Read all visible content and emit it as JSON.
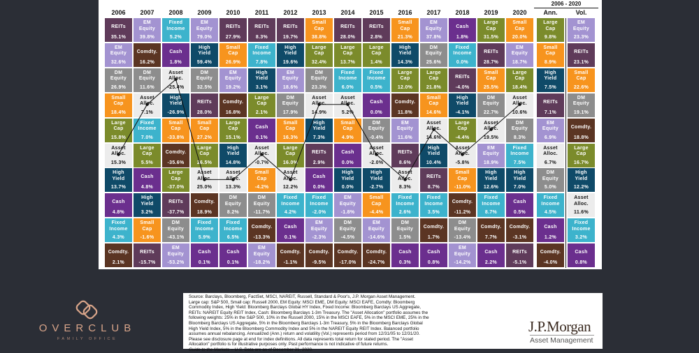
{
  "colors": {
    "reits": "#5f3b5a",
    "em": "#a393d1",
    "fi": "#3db3cc",
    "cash": "#6b2f8e",
    "hy": "#0f4a68",
    "dm": "#8d8d8d",
    "comdty": "#5b3523",
    "small": "#f7941e",
    "large": "#7b8b2b",
    "aa": "#ececec"
  },
  "assets": {
    "reits": "REITs",
    "em": "EM\nEquity",
    "fi": "Fixed\nIncome",
    "cash": "Cash",
    "hy": "High\nYield",
    "dm": "DM\nEquity",
    "comdty": "Comdty.",
    "small": "Small\nCap",
    "large": "Large\nCap",
    "aa": "Asset\nAlloc."
  },
  "chart_data": {
    "type": "table",
    "range_header": "2006 - 2020",
    "columns": [
      {
        "year": "2006",
        "cells": [
          [
            "reits",
            "35.1%"
          ],
          [
            "em",
            "32.6%"
          ],
          [
            "dm",
            "26.9%"
          ],
          [
            "small",
            "18.4%"
          ],
          [
            "large",
            "15.8%"
          ],
          [
            "aa",
            "15.3%"
          ],
          [
            "hy",
            "13.7%"
          ],
          [
            "cash",
            "4.8%"
          ],
          [
            "fi",
            "4.3%"
          ],
          [
            "comdty",
            "2.1%"
          ]
        ]
      },
      {
        "year": "2007",
        "cells": [
          [
            "em",
            "39.8%"
          ],
          [
            "comdty",
            "16.2%"
          ],
          [
            "dm",
            "11.6%"
          ],
          [
            "aa",
            "7.1%"
          ],
          [
            "fi",
            "7.0%"
          ],
          [
            "large",
            "5.5%"
          ],
          [
            "cash",
            "4.8%"
          ],
          [
            "hy",
            "3.2%"
          ],
          [
            "small",
            "-1.6%"
          ],
          [
            "reits",
            "-15.7%"
          ]
        ]
      },
      {
        "year": "2008",
        "cells": [
          [
            "fi",
            "5.2%"
          ],
          [
            "cash",
            "1.8%"
          ],
          [
            "aa",
            "-25.4%"
          ],
          [
            "hy",
            "-26.9%"
          ],
          [
            "small",
            "-33.8%"
          ],
          [
            "comdty",
            "-35.6%"
          ],
          [
            "large",
            "-37.0%"
          ],
          [
            "reits",
            "-37.7%"
          ],
          [
            "dm",
            "-43.1%"
          ],
          [
            "em",
            "-53.2%"
          ]
        ]
      },
      {
        "year": "2009",
        "cells": [
          [
            "em",
            "79.0%"
          ],
          [
            "hy",
            "59.4%"
          ],
          [
            "dm",
            "32.5%"
          ],
          [
            "reits",
            "28.0%"
          ],
          [
            "small",
            "27.2%"
          ],
          [
            "large",
            "26.5%"
          ],
          [
            "aa",
            "25.0%"
          ],
          [
            "comdty",
            "18.9%"
          ],
          [
            "fi",
            "5.9%"
          ],
          [
            "cash",
            "0.1%"
          ]
        ]
      },
      {
        "year": "2010",
        "cells": [
          [
            "reits",
            "27.9%"
          ],
          [
            "small",
            "26.9%"
          ],
          [
            "em",
            "19.2%"
          ],
          [
            "comdty",
            "16.8%"
          ],
          [
            "large",
            "15.1%"
          ],
          [
            "hy",
            "14.8%"
          ],
          [
            "aa",
            "13.3%"
          ],
          [
            "dm",
            "8.2%"
          ],
          [
            "fi",
            "6.5%"
          ],
          [
            "cash",
            "0.1%"
          ]
        ]
      },
      {
        "year": "2011",
        "cells": [
          [
            "reits",
            "8.3%"
          ],
          [
            "fi",
            "7.8%"
          ],
          [
            "hy",
            "3.1%"
          ],
          [
            "large",
            "2.1%"
          ],
          [
            "cash",
            "0.1%"
          ],
          [
            "aa",
            "-0.7%"
          ],
          [
            "small",
            "-4.2%"
          ],
          [
            "dm",
            "-11.7%"
          ],
          [
            "comdty",
            "-13.3%"
          ],
          [
            "em",
            "-18.2%"
          ]
        ]
      },
      {
        "year": "2012",
        "cells": [
          [
            "reits",
            "19.7%"
          ],
          [
            "hy",
            "19.6%"
          ],
          [
            "em",
            "18.6%"
          ],
          [
            "dm",
            "17.9%"
          ],
          [
            "small",
            "16.3%"
          ],
          [
            "large",
            "16.0%"
          ],
          [
            "aa",
            "12.2%"
          ],
          [
            "fi",
            "4.2%"
          ],
          [
            "cash",
            "0.1%"
          ],
          [
            "comdty",
            "-1.1%"
          ]
        ]
      },
      {
        "year": "2013",
        "cells": [
          [
            "small",
            "38.8%"
          ],
          [
            "large",
            "32.4%"
          ],
          [
            "dm",
            "23.3%"
          ],
          [
            "aa",
            "14.9%"
          ],
          [
            "hy",
            "7.3%"
          ],
          [
            "reits",
            "2.9%"
          ],
          [
            "cash",
            "0.0%"
          ],
          [
            "fi",
            "-2.0%"
          ],
          [
            "em",
            "-2.3%"
          ],
          [
            "comdty",
            "-9.5%"
          ]
        ]
      },
      {
        "year": "2014",
        "cells": [
          [
            "reits",
            "28.0%"
          ],
          [
            "large",
            "13.7%"
          ],
          [
            "fi",
            "6.0%"
          ],
          [
            "aa",
            "5.2%"
          ],
          [
            "small",
            "4.9%"
          ],
          [
            "cash",
            "0.0%"
          ],
          [
            "hy",
            "0.0%"
          ],
          [
            "em",
            "-1.8%"
          ],
          [
            "dm",
            "-4.5%"
          ],
          [
            "comdty",
            "-17.0%"
          ]
        ]
      },
      {
        "year": "2015",
        "cells": [
          [
            "reits",
            "2.8%"
          ],
          [
            "large",
            "1.4%"
          ],
          [
            "fi",
            "0.5%"
          ],
          [
            "cash",
            "0.0%"
          ],
          [
            "dm",
            "-0.4%"
          ],
          [
            "aa",
            "-2.0%"
          ],
          [
            "hy",
            "-2.7%"
          ],
          [
            "small",
            "-4.4%"
          ],
          [
            "em",
            "-14.6%"
          ],
          [
            "comdty",
            "-24.7%"
          ]
        ]
      },
      {
        "year": "2016",
        "cells": [
          [
            "small",
            "21.3%"
          ],
          [
            "hy",
            "14.3%"
          ],
          [
            "large",
            "12.0%"
          ],
          [
            "comdty",
            "11.8%"
          ],
          [
            "em",
            "11.6%"
          ],
          [
            "reits",
            "8.6%"
          ],
          [
            "aa",
            "8.3%"
          ],
          [
            "fi",
            "2.6%"
          ],
          [
            "dm",
            "1.5%"
          ],
          [
            "cash",
            "0.3%"
          ]
        ]
      },
      {
        "year": "2017",
        "cells": [
          [
            "em",
            "37.8%"
          ],
          [
            "dm",
            "25.6%"
          ],
          [
            "large",
            "21.8%"
          ],
          [
            "small",
            "14.6%"
          ],
          [
            "aa",
            "14.6%"
          ],
          [
            "hy",
            "10.4%"
          ],
          [
            "reits",
            "8.7%"
          ],
          [
            "fi",
            "3.5%"
          ],
          [
            "comdty",
            "1.7%"
          ],
          [
            "cash",
            "0.8%"
          ]
        ]
      },
      {
        "year": "2018",
        "cells": [
          [
            "cash",
            "1.8%"
          ],
          [
            "fi",
            "0.0%"
          ],
          [
            "reits",
            "-4.0%"
          ],
          [
            "hy",
            "-4.1%"
          ],
          [
            "large",
            "-4.4%"
          ],
          [
            "aa",
            "-5.8%"
          ],
          [
            "small",
            "-11.0%"
          ],
          [
            "comdty",
            "-11.2%"
          ],
          [
            "dm",
            "-13.4%"
          ],
          [
            "em",
            "-14.2%"
          ]
        ]
      },
      {
        "year": "2019",
        "cells": [
          [
            "large",
            "31.5%"
          ],
          [
            "reits",
            "28.7%"
          ],
          [
            "small",
            "25.5%"
          ],
          [
            "dm",
            "22.7%"
          ],
          [
            "aa",
            "19.5%"
          ],
          [
            "em",
            "18.9%"
          ],
          [
            "hy",
            "12.6%"
          ],
          [
            "fi",
            "8.7%"
          ],
          [
            "comdty",
            "7.7%"
          ],
          [
            "cash",
            "2.2%"
          ]
        ]
      },
      {
        "year": "2020",
        "cells": [
          [
            "small",
            "20.0%"
          ],
          [
            "em",
            "18.7%"
          ],
          [
            "large",
            "18.4%"
          ],
          [
            "aa",
            "10.6%"
          ],
          [
            "dm",
            "8.3%"
          ],
          [
            "fi",
            "7.5%"
          ],
          [
            "hy",
            "7.0%"
          ],
          [
            "cash",
            "0.5%"
          ],
          [
            "comdty",
            "-3.1%"
          ],
          [
            "reits",
            "-5.1%"
          ]
        ]
      },
      {
        "year": "Ann.",
        "cells": [
          [
            "large",
            "9.8%"
          ],
          [
            "small",
            "8.9%"
          ],
          [
            "hy",
            "7.5%"
          ],
          [
            "reits",
            "7.1%"
          ],
          [
            "em",
            "6.9%"
          ],
          [
            "aa",
            "6.7%"
          ],
          [
            "dm",
            "5.0%"
          ],
          [
            "fi",
            "4.5%"
          ],
          [
            "cash",
            "1.2%"
          ],
          [
            "comdty",
            "-4.0%"
          ]
        ]
      },
      {
        "year": "Vol.",
        "cells": [
          [
            "em",
            "23.3%"
          ],
          [
            "reits",
            "23.1%"
          ],
          [
            "small",
            "22.6%"
          ],
          [
            "dm",
            "19.1%"
          ],
          [
            "comdty",
            "18.8%"
          ],
          [
            "large",
            "16.7%"
          ],
          [
            "hy",
            "12.2%"
          ],
          [
            "aa",
            "11.6%"
          ],
          [
            "fi",
            "3.2%"
          ],
          [
            "cash",
            "0.8%"
          ]
        ]
      }
    ]
  },
  "footer": {
    "source": "Source: Barclays, Bloomberg, FactSet, MSCI, NAREIT, Russell, Standard & Poor's, J.P. Morgan Asset Management.",
    "notes": "Large cap: S&P 500, Small cap: Russell 2000, EM Equity: MSCI EME, DM Equity: MSCI EAFE, Comdty: Bloomberg Commodity Index, High Yield: Bloomberg Barclays Global HY Index, Fixed Income: Bloomberg Barclays US Aggregate, REITs: NAREIT Equity REIT Index, Cash: Bloomberg Barclays 1-3m Treasury. The \"Asset Allocation\" portfolio assumes the following weights: 25% in the S&P 500, 10% in the Russell 2000, 15% in the MSCI EAFE, 5% in the MSCI EME, 25% in the Bloomberg Barclays US Aggregate, 5% in the Bloomberg Barclays 1-3m Treasury, 5% in the Bloomberg Barclays Global High Yield Index, 5% in the Bloomberg Commodity Index and 5% in the NAREIT Equity REIT Index. Balanced portfolio assumes annual rebalancing. Annualized (Ann.) return and volatility (Vol.) represents period from 12/31/05 to 12/31/20. Please see disclosure page at end for index definitions. All data represents total return for stated period. The \"Asset Allocation\" portfolio is for illustrative purposes only. Past performance is not indicative of future returns.",
    "guide": "Guide to the Markets – U.S.",
    "asof": " Data are as of December 31, 2020."
  },
  "logos": {
    "jpm_name": "J.P.Morgan",
    "jpm_sub": "Asset Management",
    "overclub_name": "OVERCLUB",
    "overclub_sub": "FAMILY OFFICE"
  }
}
